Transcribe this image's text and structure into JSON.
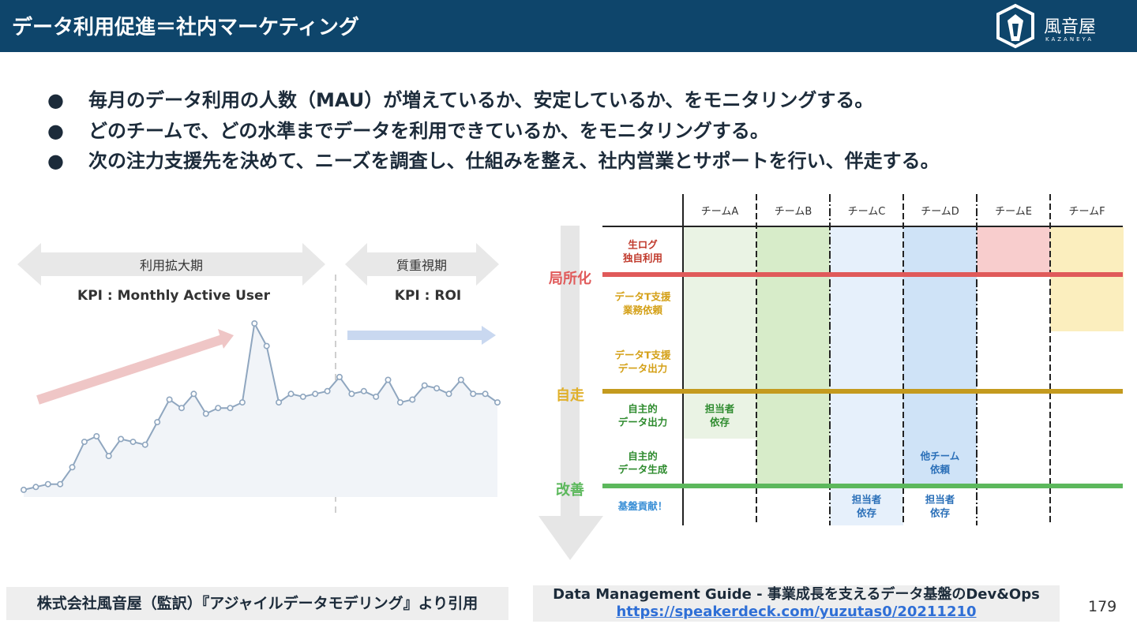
{
  "header": {
    "title": "データ利用促進＝社内マーケティング",
    "logo_text": "風音屋",
    "logo_sub": "KAZANEYA"
  },
  "bullets": [
    "毎月のデータ利用の人数（MAU）が増えているか、安定しているか、をモニタリングする。",
    "どのチームで、どの水準までデータを利用できているか、をモニタリングする。",
    "次の注力支援先を決めて、ニーズを調査し、仕組みを整え、社内営業とサポートを行い、伴走する。"
  ],
  "bullet_symbol": "●",
  "left_chart": {
    "phase1_label": "利用拡大期",
    "phase1_kpi": "KPI : Monthly Active User",
    "phase2_label": "質重視期",
    "phase2_kpi": "KPI : ROI"
  },
  "chart_data": {
    "type": "line",
    "x": [
      1,
      2,
      3,
      4,
      5,
      6,
      7,
      8,
      9,
      10,
      11,
      12,
      13,
      14,
      15,
      16,
      17,
      18,
      19,
      20,
      21,
      22,
      23,
      24,
      25,
      26,
      27,
      28,
      29,
      30,
      31,
      32,
      33,
      34,
      35,
      36,
      37,
      38,
      39,
      40
    ],
    "values": [
      2,
      3,
      4,
      4,
      10,
      19,
      21,
      14,
      20,
      19,
      18,
      26,
      34,
      31,
      36,
      29,
      31,
      31,
      33,
      61,
      53,
      33,
      36,
      35,
      36,
      37,
      42,
      36,
      37,
      35,
      41,
      33,
      34,
      39,
      38,
      36,
      41,
      36,
      36,
      33
    ],
    "phase_split_after_index": 26
  },
  "matrix": {
    "teams": [
      "チームA",
      "チームB",
      "チームC",
      "チームD",
      "チームE",
      "チームF"
    ],
    "rows": [
      {
        "label": [
          "生ログ",
          "独自利用"
        ],
        "color": "#c0392b"
      },
      {
        "label": [
          "データT支援",
          "業務依頼"
        ],
        "color": "#d4a017"
      },
      {
        "label": [
          "データT支援",
          "データ出力"
        ],
        "color": "#d4a017"
      },
      {
        "label": [
          "自主的",
          "データ出力"
        ],
        "color": "#2e8b2e"
      },
      {
        "label": [
          "自主的",
          "データ生成"
        ],
        "color": "#2e8b2e"
      },
      {
        "label": [
          "基盤貢献！"
        ],
        "color": "#3a8fd6"
      }
    ],
    "levels": [
      {
        "name": "局所化",
        "color": "#e05a5a"
      },
      {
        "name": "自走",
        "color": "#e0b02a"
      },
      {
        "name": "改善",
        "color": "#5cb85c"
      }
    ],
    "cell_notes": [
      {
        "team": 0,
        "row": 3,
        "text": [
          "担当者",
          "依存"
        ],
        "color": "#2e8b2e"
      },
      {
        "team": 3,
        "row": 4,
        "text": [
          "他チーム",
          "依頼"
        ],
        "color": "#2a6fb8"
      },
      {
        "team": 2,
        "row": 5,
        "text": [
          "担当者",
          "依存"
        ],
        "color": "#2a6fb8"
      },
      {
        "team": 3,
        "row": 5,
        "text": [
          "担当者",
          "依存"
        ],
        "color": "#2a6fb8"
      }
    ],
    "team_levels": [
      4,
      5,
      6,
      5,
      1,
      2
    ]
  },
  "footer": {
    "left": "株式会社風音屋（監訳）『アジャイルデータモデリング』より引用",
    "right_title": "Data Management Guide - 事業成長を支えるデータ基盤のDev&Ops",
    "right_link": "https://speakerdeck.com/yuzutas0/20211210",
    "page_number": "179"
  }
}
